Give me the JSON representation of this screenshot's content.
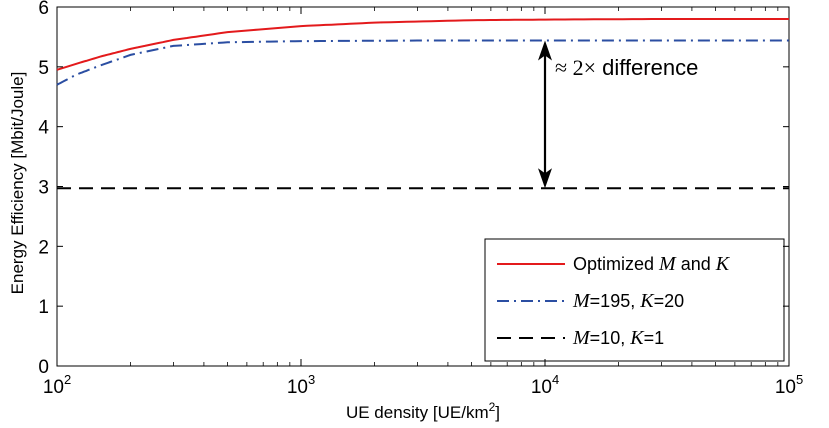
{
  "chart_data": {
    "type": "line",
    "xlabel": "UE density [UE/km",
    "xlabel_sup": "2",
    "xlabel_end": "]",
    "ylabel": "Energy Efficiency [Mbit/Joule]",
    "x_scale": "log",
    "xlim": [
      100,
      100000
    ],
    "ylim": [
      0,
      6
    ],
    "grid": false,
    "legend_position": "bottom-right",
    "x_ticks": [
      {
        "value": 100,
        "base": "10",
        "exp": "2"
      },
      {
        "value": 1000,
        "base": "10",
        "exp": "3"
      },
      {
        "value": 10000,
        "base": "10",
        "exp": "4"
      },
      {
        "value": 100000,
        "base": "10",
        "exp": "5"
      }
    ],
    "y_ticks": [
      {
        "value": 0,
        "label": "0"
      },
      {
        "value": 1,
        "label": "1"
      },
      {
        "value": 2,
        "label": "2"
      },
      {
        "value": 3,
        "label": "3"
      },
      {
        "value": 4,
        "label": "4"
      },
      {
        "value": 5,
        "label": "5"
      },
      {
        "value": 6,
        "label": "6"
      }
    ],
    "series": [
      {
        "legend": [
          "Optimized ",
          "M",
          " and ",
          "K"
        ],
        "color": "#e31a1c",
        "dash": "solid",
        "points": [
          [
            100,
            4.95
          ],
          [
            120,
            5.05
          ],
          [
            150,
            5.17
          ],
          [
            200,
            5.3
          ],
          [
            300,
            5.45
          ],
          [
            500,
            5.58
          ],
          [
            1000,
            5.68
          ],
          [
            2000,
            5.74
          ],
          [
            5000,
            5.78
          ],
          [
            10000,
            5.79
          ],
          [
            30000,
            5.8
          ],
          [
            100000,
            5.8
          ]
        ]
      },
      {
        "legend": [
          "M",
          "=195, ",
          "K",
          "=20"
        ],
        "color": "#2b4ea2",
        "dash": "dashdot",
        "points": [
          [
            100,
            4.7
          ],
          [
            120,
            4.87
          ],
          [
            150,
            5.02
          ],
          [
            200,
            5.2
          ],
          [
            300,
            5.35
          ],
          [
            500,
            5.41
          ],
          [
            1000,
            5.43
          ],
          [
            3000,
            5.44
          ],
          [
            10000,
            5.44
          ],
          [
            100000,
            5.44
          ]
        ]
      },
      {
        "legend": [
          "M",
          "=10, ",
          "K",
          "=1"
        ],
        "color": "#000000",
        "dash": "dashed",
        "points": [
          [
            100,
            2.97
          ],
          [
            100000,
            2.97
          ]
        ]
      }
    ],
    "annotation": {
      "text_symbol": "≈ 2×",
      "text_rest": " difference",
      "arrow_x": 10000,
      "arrow_y_top": 5.44,
      "arrow_y_bottom": 2.97
    }
  }
}
